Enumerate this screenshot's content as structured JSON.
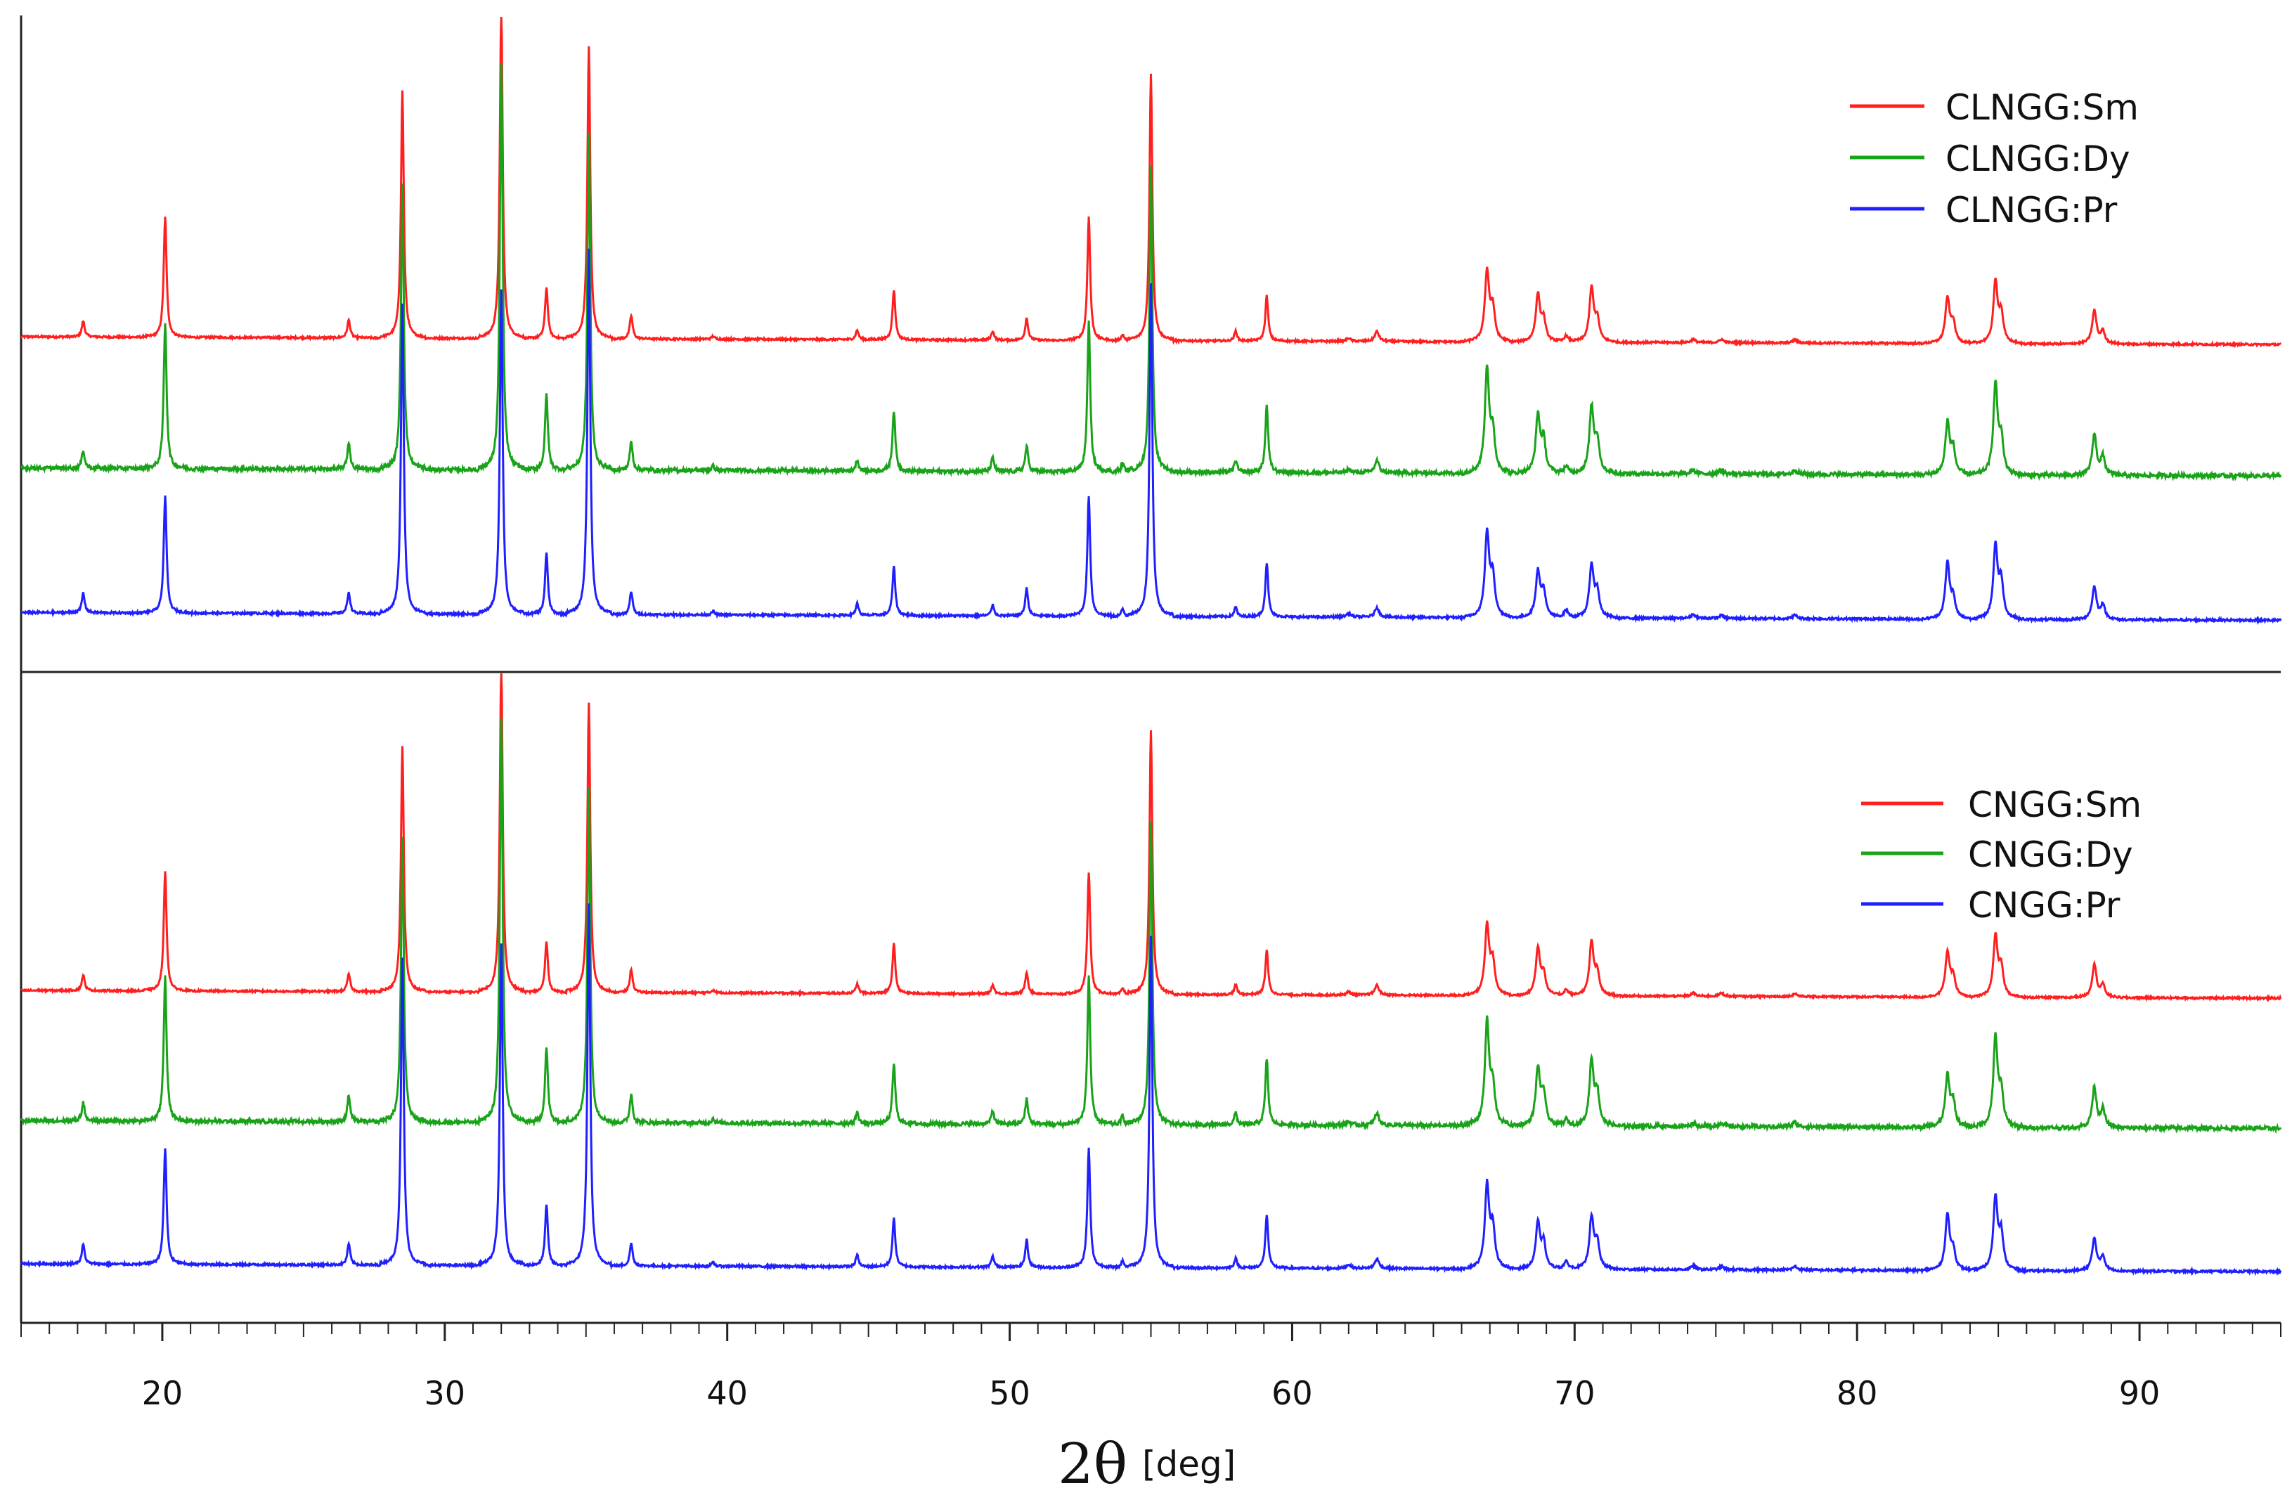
{
  "chart_data": {
    "type": "line",
    "title": "",
    "xlabel": "2θ",
    "xunit": "[deg]",
    "ylabel": "",
    "xlim": [
      15,
      95
    ],
    "xticks": [
      20,
      30,
      40,
      50,
      60,
      70,
      80,
      90
    ],
    "minor_tick_step": 1,
    "yaxis_visible": false,
    "grid": false,
    "legend_position": "top-right",
    "colors": {
      "Sm": "#ff1f1f",
      "Dy": "#19a319",
      "Pr": "#1f1fff"
    },
    "panels": [
      {
        "name": "upper",
        "series": [
          {
            "name": "CLNGG:Sm",
            "color": "#ff1f1f",
            "baseline": 0.5
          },
          {
            "name": "CLNGG:Dy",
            "color": "#19a319",
            "baseline": 0.3
          },
          {
            "name": "CLNGG:Pr",
            "color": "#1f1fff",
            "baseline": 0.08
          }
        ]
      },
      {
        "name": "lower",
        "series": [
          {
            "name": "CNGG:Sm",
            "color": "#ff1f1f",
            "baseline": 0.5
          },
          {
            "name": "CNGG:Dy",
            "color": "#19a319",
            "baseline": 0.3
          },
          {
            "name": "CNGG:Pr",
            "color": "#1f1fff",
            "baseline": 0.08
          }
        ]
      }
    ],
    "peak_positions_deg": [
      17.2,
      20.1,
      26.6,
      28.5,
      32.0,
      33.6,
      35.1,
      36.6,
      39.5,
      44.6,
      45.9,
      49.4,
      50.6,
      52.8,
      54.0,
      55.0,
      58.0,
      59.1,
      62.0,
      63.0,
      66.9,
      67.1,
      68.7,
      68.9,
      69.7,
      70.6,
      70.8,
      74.2,
      75.2,
      77.8,
      83.2,
      83.4,
      84.9,
      85.1,
      88.4,
      88.7
    ],
    "peak_intensity_relative": [
      0.05,
      0.36,
      0.06,
      0.78,
      1.0,
      0.17,
      0.92,
      0.07,
      0.01,
      0.03,
      0.15,
      0.03,
      0.07,
      0.37,
      0.02,
      0.84,
      0.03,
      0.15,
      0.01,
      0.03,
      0.23,
      0.1,
      0.14,
      0.07,
      0.02,
      0.16,
      0.07,
      0.01,
      0.01,
      0.01,
      0.14,
      0.06,
      0.2,
      0.09,
      0.1,
      0.04
    ]
  }
}
